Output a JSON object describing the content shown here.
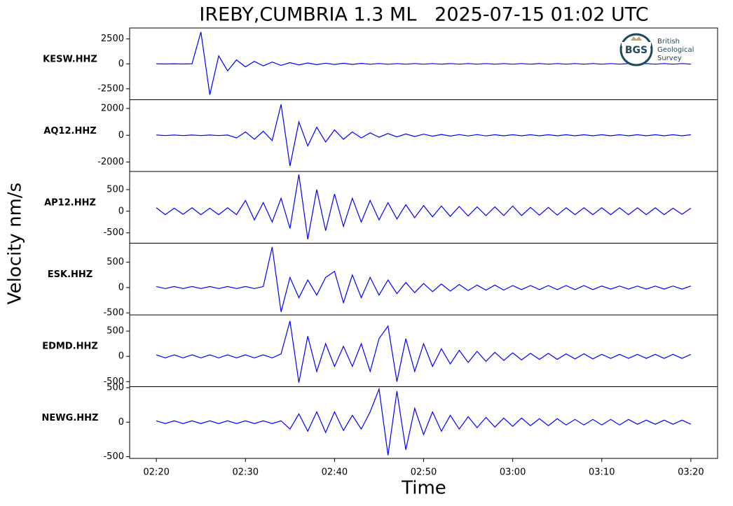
{
  "chart_data": {
    "type": "line",
    "title": "IREBY,CUMBRIA 1.3 ML   2025-07-15 01:02 UTC",
    "x_label": "Time",
    "y_label": "Velocity nm/s",
    "logo": {
      "mark": "BGS",
      "lines": [
        "British",
        "Geological",
        "Survey"
      ]
    },
    "x": [
      "02:20",
      "02:21",
      "02:22",
      "02:23",
      "02:24",
      "02:25",
      "02:26",
      "02:27",
      "02:28",
      "02:29",
      "02:30",
      "02:31",
      "02:32",
      "02:33",
      "02:34",
      "02:35",
      "02:36",
      "02:37",
      "02:38",
      "02:39",
      "02:40",
      "02:41",
      "02:42",
      "02:43",
      "02:44",
      "02:45",
      "02:46",
      "02:47",
      "02:48",
      "02:49",
      "02:50",
      "02:51",
      "02:52",
      "02:53",
      "02:54",
      "02:55",
      "02:56",
      "02:57",
      "02:58",
      "02:59",
      "03:00",
      "03:01",
      "03:02",
      "03:03",
      "03:04",
      "03:05",
      "03:06",
      "03:07",
      "03:08",
      "03:09",
      "03:10",
      "03:11",
      "03:12",
      "03:13",
      "03:14",
      "03:15",
      "03:16",
      "03:17",
      "03:18",
      "03:19",
      "03:20"
    ],
    "xlim": [
      "02:17",
      "03:23"
    ],
    "xticks": [
      "02:20",
      "02:30",
      "02:40",
      "02:50",
      "03:00",
      "03:10",
      "03:20"
    ],
    "series": [
      {
        "name": "KESW.HHZ",
        "color": "#0000ff",
        "ylim": [
          -3600,
          3600
        ],
        "yticks": [
          -2500,
          0,
          2500
        ],
        "values": [
          10,
          -10,
          10,
          -10,
          10,
          3200,
          -3100,
          800,
          -700,
          400,
          -300,
          250,
          -200,
          180,
          -150,
          120,
          -100,
          90,
          -80,
          70,
          -60,
          60,
          -50,
          50,
          -40,
          40,
          -40,
          30,
          -30,
          30,
          -30,
          30,
          -30,
          30,
          -30,
          30,
          -30,
          30,
          -30,
          30,
          -30,
          30,
          -30,
          30,
          -30,
          30,
          -30,
          30,
          -30,
          30,
          -30,
          30,
          -30,
          30,
          -30,
          30,
          -30,
          30,
          -30,
          30,
          -30
        ]
      },
      {
        "name": "AQ12.HHZ",
        "color": "#0000ff",
        "ylim": [
          -2700,
          2650
        ],
        "yticks": [
          -2000,
          0,
          2000
        ],
        "values": [
          20,
          -20,
          20,
          -20,
          20,
          -20,
          20,
          -20,
          20,
          -200,
          250,
          -300,
          300,
          -400,
          2300,
          -2300,
          1000,
          -800,
          600,
          -500,
          400,
          -300,
          250,
          -200,
          180,
          -150,
          130,
          -120,
          100,
          -90,
          80,
          -70,
          60,
          -60,
          50,
          -50,
          50,
          -50,
          40,
          -40,
          40,
          -40,
          40,
          -40,
          40,
          -40,
          40,
          -40,
          40,
          -40,
          40,
          -40,
          40,
          -40,
          40,
          -40,
          40,
          -40,
          40,
          -40,
          40
        ]
      },
      {
        "name": "AP12.HHZ",
        "color": "#0000ff",
        "ylim": [
          -740,
          920
        ],
        "yticks": [
          -500,
          0,
          500
        ],
        "values": [
          80,
          -80,
          70,
          -70,
          80,
          -80,
          70,
          -80,
          80,
          -80,
          250,
          -200,
          200,
          -250,
          300,
          -400,
          850,
          -650,
          500,
          -450,
          400,
          -350,
          300,
          -250,
          250,
          -200,
          200,
          -180,
          150,
          -150,
          130,
          -130,
          120,
          -120,
          110,
          -110,
          100,
          -100,
          100,
          -100,
          120,
          -100,
          90,
          -90,
          90,
          -90,
          80,
          -80,
          80,
          -80,
          80,
          -80,
          80,
          -80,
          80,
          -80,
          80,
          -80,
          70,
          -70,
          70
        ]
      },
      {
        "name": "ESK.HHZ",
        "color": "#0000ff",
        "ylim": [
          -540,
          875
        ],
        "yticks": [
          -500,
          0,
          500
        ],
        "values": [
          20,
          -20,
          20,
          -20,
          20,
          -20,
          20,
          -20,
          20,
          -20,
          20,
          -20,
          20,
          800,
          -480,
          200,
          -200,
          150,
          -150,
          200,
          320,
          -300,
          250,
          -200,
          200,
          -150,
          150,
          -120,
          100,
          -100,
          80,
          -80,
          70,
          -70,
          60,
          -60,
          50,
          -50,
          50,
          -50,
          40,
          -40,
          40,
          -40,
          40,
          -40,
          40,
          -40,
          40,
          -40,
          30,
          -30,
          30,
          -30,
          30,
          -30,
          30,
          -30,
          30,
          -30,
          30
        ]
      },
      {
        "name": "EDMD.HHZ",
        "color": "#0000ff",
        "ylim": [
          -600,
          820
        ],
        "yticks": [
          -500,
          0,
          500
        ],
        "values": [
          30,
          -30,
          30,
          -30,
          30,
          -30,
          30,
          -30,
          30,
          -30,
          30,
          -30,
          30,
          -30,
          50,
          700,
          -520,
          400,
          -300,
          250,
          -200,
          200,
          -200,
          250,
          -300,
          350,
          600,
          -500,
          350,
          -300,
          250,
          -200,
          150,
          -150,
          120,
          -120,
          100,
          -100,
          80,
          -80,
          70,
          -70,
          60,
          -60,
          60,
          -60,
          50,
          -50,
          50,
          -50,
          40,
          -40,
          40,
          -40,
          40,
          -40,
          40,
          -40,
          40,
          -40,
          40
        ]
      },
      {
        "name": "NEWG.HHZ",
        "color": "#0000ff",
        "ylim": [
          -525,
          515
        ],
        "yticks": [
          -500,
          0,
          500
        ],
        "values": [
          20,
          -20,
          20,
          -20,
          20,
          -20,
          20,
          -20,
          20,
          -20,
          20,
          -20,
          20,
          -20,
          20,
          -100,
          120,
          -130,
          150,
          -150,
          150,
          -120,
          100,
          -100,
          150,
          480,
          -480,
          450,
          -400,
          200,
          -180,
          150,
          -130,
          100,
          -100,
          80,
          -80,
          70,
          -70,
          60,
          -60,
          60,
          -50,
          50,
          -50,
          50,
          -40,
          40,
          -40,
          40,
          -40,
          40,
          -40,
          40,
          -30,
          30,
          -30,
          30,
          -30,
          30,
          -30
        ]
      }
    ]
  }
}
